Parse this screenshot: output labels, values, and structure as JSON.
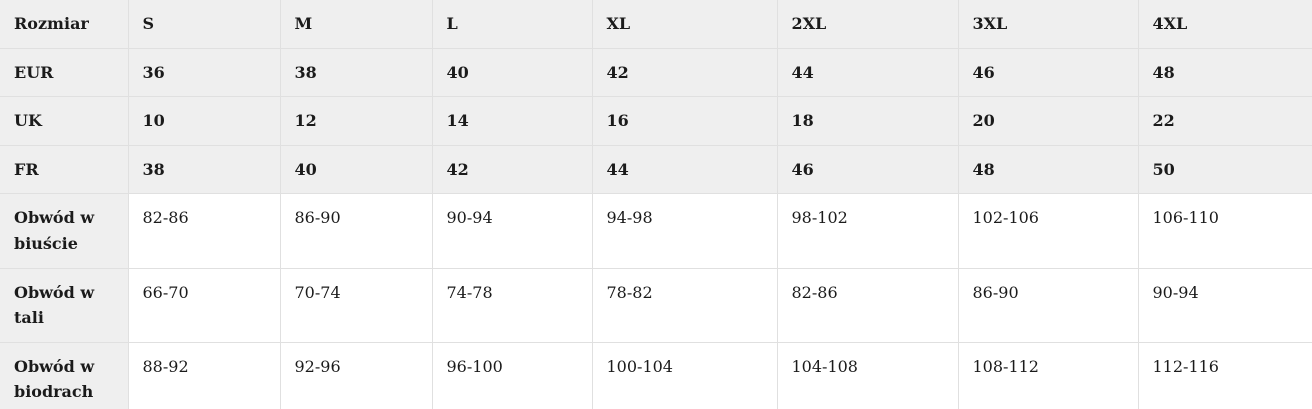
{
  "colors": {
    "header_cell_bg": "#efefef",
    "data_cell_bg": "#ffffff",
    "border": "#e0e0e0",
    "text": "#1b1b1b"
  },
  "table": {
    "name": "size-chart",
    "rows": [
      {
        "label": "Rozmiar",
        "style": "header",
        "values": [
          "S",
          "M",
          "L",
          "XL",
          "2XL",
          "3XL",
          "4XL"
        ]
      },
      {
        "label": "EUR",
        "style": "header",
        "values": [
          "36",
          "38",
          "40",
          "42",
          "44",
          "46",
          "48"
        ]
      },
      {
        "label": "UK",
        "style": "header",
        "values": [
          "10",
          "12",
          "14",
          "16",
          "18",
          "20",
          "22"
        ]
      },
      {
        "label": "FR",
        "style": "header",
        "values": [
          "38",
          "40",
          "42",
          "44",
          "46",
          "48",
          "50"
        ]
      },
      {
        "label": "Obwód w biuście",
        "style": "measure",
        "values": [
          "82-86",
          "86-90",
          "90-94",
          "94-98",
          "98-102",
          "102-106",
          "106-110"
        ]
      },
      {
        "label": "Obwód w tali",
        "style": "measure",
        "values": [
          "66-70",
          "70-74",
          "74-78",
          "78-82",
          "82-86",
          "86-90",
          "90-94"
        ]
      },
      {
        "label": "Obwód w biodrach",
        "style": "measure",
        "values": [
          "88-92",
          "92-96",
          "96-100",
          "100-104",
          "104-108",
          "108-112",
          "112-116"
        ]
      }
    ]
  }
}
